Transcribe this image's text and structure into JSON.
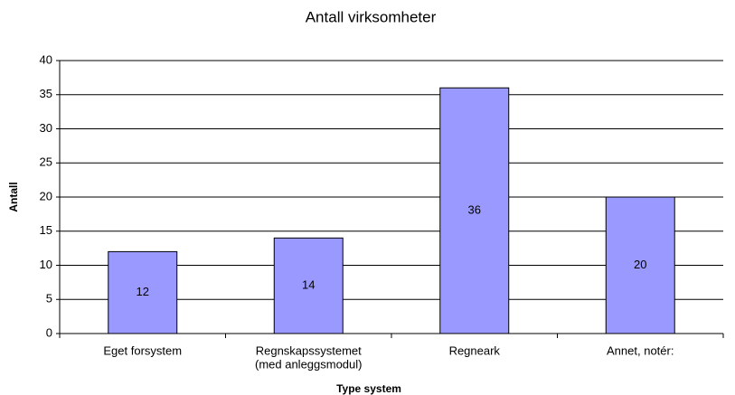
{
  "chart_data": {
    "type": "bar",
    "title": "Antall virksomheter",
    "x_label": "Type system",
    "y_label": "Antall",
    "categories": [
      "Eget forsystem",
      [
        "Regnskapssystemet",
        "(med anleggsmodul)"
      ],
      "Regneark",
      "Annet, notér:"
    ],
    "values": [
      12,
      14,
      36,
      20
    ],
    "color": "#9999ff",
    "ylim": [
      0,
      40
    ],
    "yticks": [
      0,
      5,
      10,
      15,
      20,
      25,
      30,
      35,
      40
    ],
    "grid": true
  }
}
